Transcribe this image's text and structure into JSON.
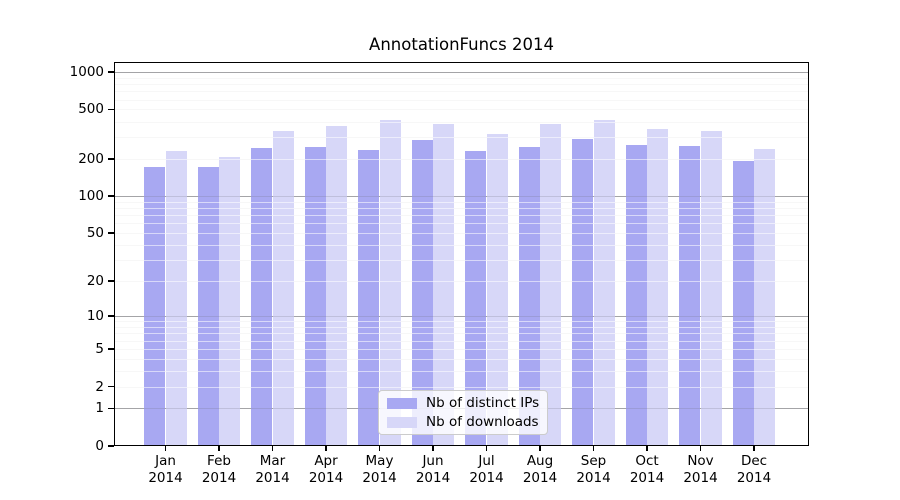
{
  "chart_data": {
    "type": "bar",
    "title": "AnnotationFuncs 2014",
    "xlabel": "",
    "ylabel": "",
    "yscale": "log1p",
    "ylim": [
      0,
      1200
    ],
    "grid": true,
    "legend_position": "lower center",
    "categories": [
      "Jan",
      "Feb",
      "Mar",
      "Apr",
      "May",
      "Jun",
      "Jul",
      "Aug",
      "Sep",
      "Oct",
      "Nov",
      "Dec"
    ],
    "category_year": "2014",
    "ytick_labels": [
      "0",
      "1",
      "2",
      "5",
      "10",
      "20",
      "50",
      "100",
      "200",
      "500",
      "1000"
    ],
    "yticks": [
      0,
      1,
      2,
      5,
      10,
      20,
      50,
      100,
      200,
      500,
      1000
    ],
    "series": [
      {
        "name": "Nb of distinct IPs",
        "color": "#a8a8f2",
        "values": [
          172,
          172,
          243,
          248,
          237,
          286,
          233,
          251,
          291,
          257,
          252,
          193
        ]
      },
      {
        "name": "Nb of downloads",
        "color": "#d7d7f8",
        "values": [
          233,
          208,
          338,
          370,
          414,
          379,
          317,
          384,
          409,
          348,
          336,
          242
        ]
      }
    ]
  },
  "colors": {
    "axis": "#000000",
    "major_grid": "#b4b4b4",
    "minor_grid": "#ededed",
    "background": "#ffffff"
  }
}
